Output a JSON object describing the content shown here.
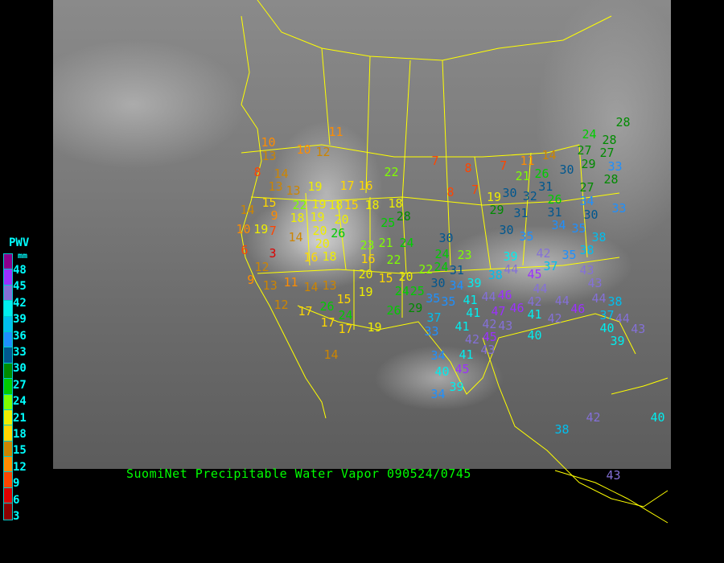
{
  "title": "SuomiNet Precipitable Water Vapor 090524/0745",
  "legend": {
    "title": "PWV",
    "unit": "mm",
    "labels": [
      "48",
      "45",
      "42",
      "39",
      "36",
      "33",
      "30",
      "27",
      "24",
      "21",
      "18",
      "15",
      "12",
      "9",
      "6",
      "3"
    ],
    "colors": [
      "#8b008b",
      "#9b30ff",
      "#8470d8",
      "#00eeee",
      "#00bfee",
      "#1e90ff",
      "#00578f",
      "#008b00",
      "#00cd00",
      "#7fff00",
      "#eeee00",
      "#ffd700",
      "#cd8500",
      "#ff8c00",
      "#ff4500",
      "#dd0000",
      "#8b0000"
    ]
  },
  "map": {
    "border_color": "#ffff00",
    "stations": [
      11,
      13,
      10,
      12,
      10,
      8,
      14,
      13,
      13,
      19,
      17,
      16,
      22,
      14,
      15,
      9,
      22,
      19,
      18,
      15,
      18,
      18,
      28,
      25,
      10,
      19,
      7,
      18,
      19,
      20,
      14,
      20,
      26,
      6,
      3,
      20,
      16,
      18,
      23,
      21,
      24,
      16,
      22,
      12,
      9,
      13,
      11,
      12,
      14,
      13,
      15,
      20,
      15,
      20,
      19,
      26,
      17,
      24,
      17,
      17,
      19,
      26,
      29,
      24,
      25,
      14,
      7,
      8,
      8,
      7,
      7,
      11,
      14,
      21,
      26,
      30,
      24,
      28,
      28,
      27,
      29,
      27,
      33,
      28,
      19,
      30,
      32,
      31,
      26,
      27,
      34,
      33,
      29,
      31,
      31,
      34,
      30,
      30,
      35,
      35,
      38,
      38,
      35,
      30,
      24,
      23,
      22,
      24,
      31,
      30,
      34,
      39,
      38,
      39,
      44,
      42,
      37,
      43,
      45,
      43,
      35,
      35,
      41,
      44,
      46,
      44,
      42,
      44,
      46,
      44,
      38,
      37,
      44,
      43,
      40,
      39,
      37,
      33,
      47,
      43,
      46,
      41,
      42,
      41,
      42,
      41,
      42,
      45,
      43,
      40,
      34,
      41,
      40,
      45,
      39,
      34,
      38,
      42,
      40,
      43
    ]
  }
}
